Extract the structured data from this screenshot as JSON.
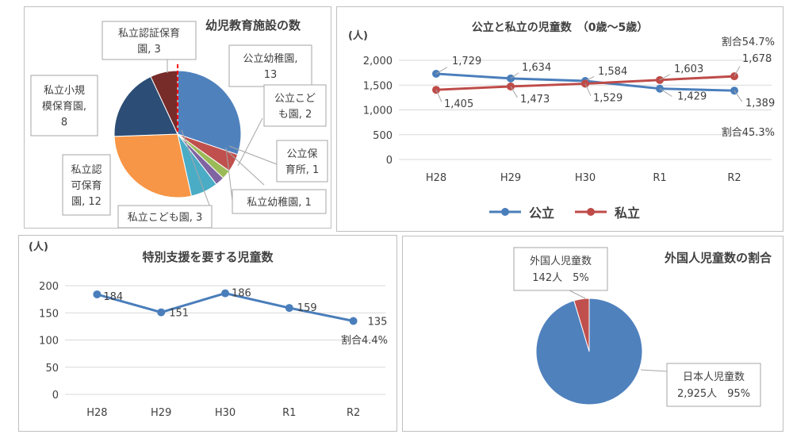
{
  "colors": {
    "public": "#4a7ebb",
    "private": "#be4b48",
    "grid": "#d9d9d9",
    "text": "#404040"
  },
  "chart_data": [
    {
      "type": "pie",
      "title": "幼児教育施設の数",
      "slices": [
        {
          "label": "公立幼稚園,",
          "value_text": "13",
          "value": 13,
          "color": "#4f81bd"
        },
        {
          "label": "公立こども園,",
          "value_text": "2",
          "value": 2,
          "color": "#c0504d"
        },
        {
          "label": "公立保育所,",
          "value_text": "1",
          "value": 1,
          "color": "#9bbb59"
        },
        {
          "label": "私立幼稚園,",
          "value_text": "1",
          "value": 1,
          "color": "#8064a2"
        },
        {
          "label": "私立こども園,",
          "value_text": "3",
          "value": 3,
          "color": "#4bacc6"
        },
        {
          "label": "私立認可保育園,",
          "value_text": "12",
          "value": 12,
          "color": "#f79646"
        },
        {
          "label": "私立小規模保育園,",
          "value_text": "8",
          "value": 8,
          "color": "#2c4d75"
        },
        {
          "label": "私立認証保育園,",
          "value_text": "3",
          "value": 3,
          "color": "#772c2a"
        }
      ]
    },
    {
      "type": "line",
      "title": "公立と私立の児童数　（0歳～5歳）",
      "unit_label": "(人)",
      "categories": [
        "H28",
        "H29",
        "H30",
        "R1",
        "R2"
      ],
      "ylim": [
        0,
        2000
      ],
      "yticks": [
        "0",
        "500",
        "1,000",
        "1,500",
        "2,000"
      ],
      "series": [
        {
          "name": "公立",
          "values": [
            1729,
            1634,
            1584,
            1429,
            1389
          ],
          "labels": [
            "1,729",
            "1,634",
            "1,584",
            "1,429",
            "1,389"
          ]
        },
        {
          "name": "私立",
          "values": [
            1405,
            1473,
            1529,
            1603,
            1678
          ],
          "labels": [
            "1,405",
            "1,473",
            "1,529",
            "1,603",
            "1,678"
          ]
        }
      ],
      "annotations": [
        "割合54.7%",
        "割合45.3%"
      ],
      "legend": "bottom"
    },
    {
      "type": "line",
      "title": "特別支援を要する児童数",
      "unit_label": "(人)",
      "categories": [
        "H28",
        "H29",
        "H30",
        "R1",
        "R2"
      ],
      "ylim": [
        0,
        200
      ],
      "yticks": [
        "0",
        "50",
        "100",
        "150",
        "200"
      ],
      "series": [
        {
          "values": [
            184,
            151,
            186,
            159,
            135
          ],
          "labels": [
            "184",
            "151",
            "186",
            "159",
            "135"
          ]
        }
      ],
      "annotations": [
        "割合4.4%"
      ]
    },
    {
      "type": "pie",
      "title": "外国人児童数の割合",
      "slices": [
        {
          "label": "外国人児童数",
          "detail": "142人　5%",
          "value": 142,
          "color": "#c0504d"
        },
        {
          "label": "日本人児童数",
          "detail": "2,925人　95%",
          "value": 2925,
          "color": "#4f81bd"
        }
      ]
    }
  ]
}
